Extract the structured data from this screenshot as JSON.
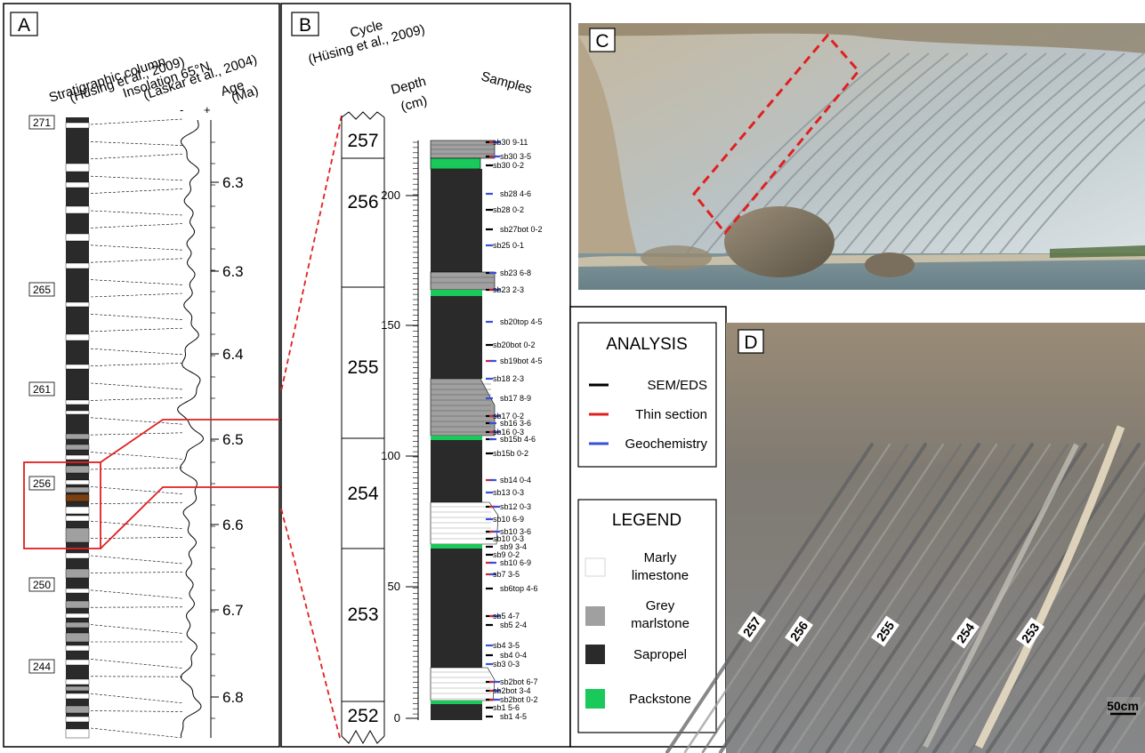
{
  "panels": {
    "A": {
      "letter": "A",
      "col1_title": [
        "Stratigraphic column",
        "(Hüsing et al., 2009)"
      ],
      "col2_title": [
        "Insolation 65°N",
        "(Laskar et al., 2004)"
      ],
      "age_title": [
        "Age",
        "(Ma)"
      ],
      "minus": "-",
      "plus": "+",
      "cycle_labels": [
        "271",
        "265",
        "261",
        "256",
        "250",
        "244"
      ],
      "age_ticks": [
        "6.3",
        "6.3",
        "6.4",
        "6.5",
        "6.6",
        "6.7",
        "6.8"
      ]
    },
    "B": {
      "letter": "B",
      "cycle_title": [
        "Cycle",
        "(Hüsing et al., 2009)"
      ],
      "depth_title": [
        "Depth",
        "(cm)"
      ],
      "samples_title": "Samples",
      "cycles": [
        "257",
        "256",
        "255",
        "254",
        "253",
        "252"
      ],
      "depth_ticks": [
        "200",
        "150",
        "100",
        "50",
        "0"
      ],
      "samples": [
        {
          "label": "sb30 9-11",
          "a": [
            "black",
            "red",
            "blue"
          ]
        },
        {
          "label": "sb30 3-5",
          "a": [
            "black",
            "red",
            "blue"
          ]
        },
        {
          "label": "sb30 0-2",
          "a": [
            "black"
          ]
        },
        {
          "label": "sb28 4-6",
          "a": [
            "blue"
          ]
        },
        {
          "label": "sb28 0-2",
          "a": [
            "black"
          ]
        },
        {
          "label": "sb27bot 0-2",
          "a": [
            "black"
          ]
        },
        {
          "label": "sb25 0-1",
          "a": [
            "blue"
          ]
        },
        {
          "label": "sb23 6-8",
          "a": [
            "black",
            "blue"
          ]
        },
        {
          "label": "sb23 2-3",
          "a": [
            "black",
            "red",
            "blue"
          ]
        },
        {
          "label": "sb20top 4-5",
          "a": [
            "blue"
          ]
        },
        {
          "label": "sb20bot 0-2",
          "a": [
            "black"
          ]
        },
        {
          "label": "sb19bot 4-5",
          "a": [
            "red",
            "blue"
          ]
        },
        {
          "label": "sb18 2-3",
          "a": [
            "blue"
          ]
        },
        {
          "label": "sb17 8-9",
          "a": [
            "blue"
          ]
        },
        {
          "label": "sb17 0-2",
          "a": [
            "black",
            "red",
            "blue"
          ]
        },
        {
          "label": "sb16 3-6",
          "a": [
            "black",
            "blue"
          ]
        },
        {
          "label": "sb16 0-3",
          "a": [
            "black",
            "red",
            "blue"
          ]
        },
        {
          "label": "sb15b 4-6",
          "a": [
            "black",
            "blue"
          ]
        },
        {
          "label": "sb15b 0-2",
          "a": [
            "black"
          ]
        },
        {
          "label": "sb14 0-4",
          "a": [
            "red",
            "blue"
          ]
        },
        {
          "label": "sb13 0-3",
          "a": [
            "blue"
          ]
        },
        {
          "label": "sb12 0-3",
          "a": [
            "black",
            "red",
            "blue"
          ]
        },
        {
          "label": "sb10 6-9",
          "a": [
            "blue"
          ]
        },
        {
          "label": "sb10 3-6",
          "a": [
            "black",
            "red",
            "blue"
          ]
        },
        {
          "label": "sb10 0-3",
          "a": [
            "black"
          ]
        },
        {
          "label": "sb9 3-4",
          "a": [
            "black"
          ]
        },
        {
          "label": "sb9 0-2",
          "a": [
            "black"
          ]
        },
        {
          "label": "sb10 6-9",
          "a": [
            "red",
            "blue"
          ]
        },
        {
          "label": "sb7 3-5",
          "a": [
            "red",
            "blue"
          ]
        },
        {
          "label": "sb6top 4-6",
          "a": [
            "black"
          ]
        },
        {
          "label": "sb5 4-7",
          "a": [
            "black",
            "red",
            "blue"
          ]
        },
        {
          "label": "sb5 2-4",
          "a": [
            "black"
          ]
        },
        {
          "label": "sb4 3-5",
          "a": [
            "blue"
          ]
        },
        {
          "label": "sb4 0-4",
          "a": [
            "black"
          ]
        },
        {
          "label": "sb3 0-3",
          "a": [
            "blue"
          ]
        },
        {
          "label": "sb2bot 6-7",
          "a": [
            "black",
            "red",
            "blue"
          ]
        },
        {
          "label": "sb2bot 3-4",
          "a": [
            "black",
            "red",
            "blue"
          ]
        },
        {
          "label": "sb2bot 0-2",
          "a": [
            "black",
            "red",
            "blue"
          ]
        },
        {
          "label": "sb1 5-6",
          "a": [
            "black"
          ]
        },
        {
          "label": "sb1 4-5",
          "a": [
            "black"
          ]
        }
      ]
    },
    "analysis": {
      "title": "ANALYSIS",
      "items": [
        {
          "label": "SEM/EDS",
          "color": "#000000"
        },
        {
          "label": "Thin section",
          "color": "#e02020"
        },
        {
          "label": "Geochemistry",
          "color": "#3a4fd8"
        }
      ]
    },
    "legend": {
      "title": "LEGEND",
      "items": [
        {
          "label": [
            "Marly",
            "limestone"
          ],
          "color": "#ffffff"
        },
        {
          "label": [
            "Grey",
            "marlstone"
          ],
          "color": "#a0a0a0"
        },
        {
          "label": [
            "Sapropel"
          ],
          "color": "#2a2a2a"
        },
        {
          "label": [
            "Packstone"
          ],
          "color": "#19c95a"
        }
      ]
    },
    "C": {
      "letter": "C"
    },
    "D": {
      "letter": "D",
      "beds": [
        "257",
        "256",
        "255",
        "254",
        "253"
      ],
      "scale_label": "50cm"
    }
  },
  "colors": {
    "sapropel": "#2a2a2a",
    "grey_marlstone": "#a0a0a0",
    "marly_limestone": "#ffffff",
    "packstone": "#19c95a",
    "sapropel_brown": "#7a4012",
    "correlation_red": "#e02020",
    "sem_black": "#000000",
    "thin_red": "#e02020",
    "geochem_blue": "#3a4fd8"
  }
}
